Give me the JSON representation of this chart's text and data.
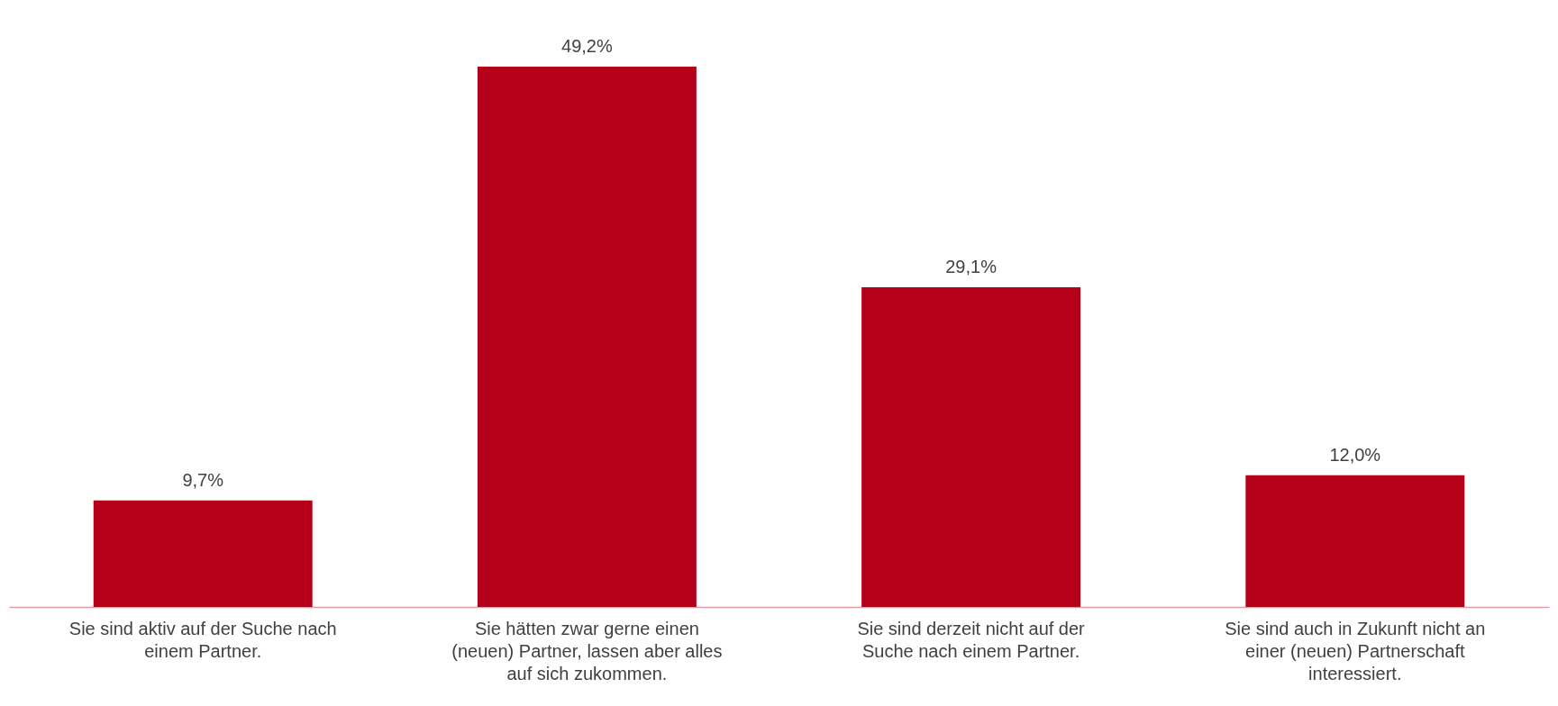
{
  "chart_data": {
    "type": "bar",
    "categories": [
      "Sie sind aktiv auf der Suche nach einem Partner.",
      "Sie hätten zwar gerne einen (neuen) Partner, lassen aber alles auf sich zukommen.",
      "Sie sind derzeit nicht auf der Suche nach einem Partner.",
      "Sie sind auch in Zukunft nicht an einer (neuen) Partnerschaft interessiert."
    ],
    "values": [
      9.7,
      49.2,
      29.1,
      12.0
    ],
    "value_labels": [
      "9,7%",
      "49,2%",
      "29,1%",
      "12,0%"
    ],
    "color": "#b5001a"
  }
}
